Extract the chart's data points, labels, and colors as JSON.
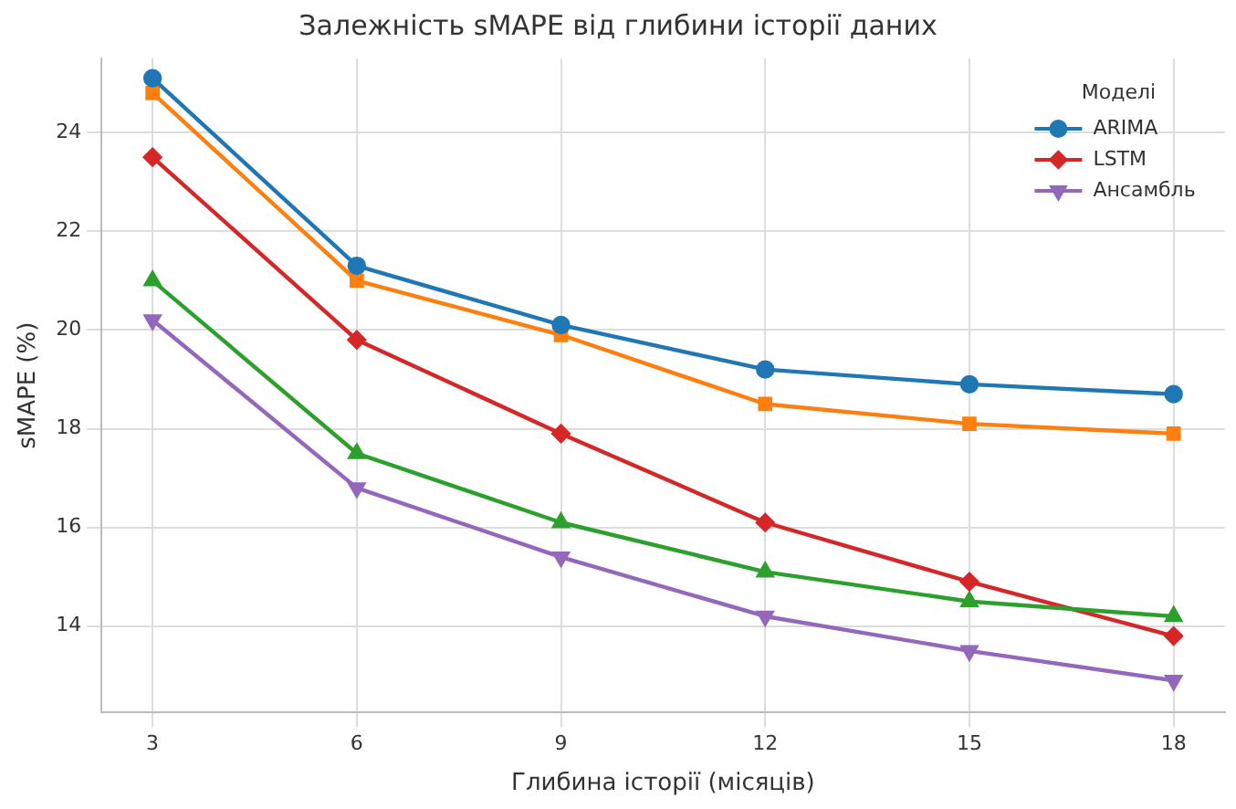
{
  "chart_data": {
    "type": "line",
    "title": "Залежність sMAPE від глибини історії даних",
    "xlabel": "Глибина історії (місяців)",
    "ylabel": "sMAPE (%)",
    "legend_title": "Моделі",
    "legend": "top right",
    "grid": true,
    "line_style": "solid",
    "x": [
      3,
      6,
      9,
      12,
      15,
      18
    ],
    "xlim": [
      2.25,
      18.75
    ],
    "xticks": [
      3,
      6,
      9,
      12,
      15,
      18
    ],
    "ylim": [
      12.25,
      25.5
    ],
    "yticks": [
      14,
      16,
      18,
      20,
      22,
      24
    ],
    "series": [
      {
        "name": "ARIMA",
        "color": "#1f77b4",
        "marker": "circle",
        "values": [
          25.1,
          21.3,
          20.1,
          19.2,
          18.9,
          18.7
        ]
      },
      {
        "color": "#ff7f0e",
        "marker": "square",
        "values": [
          24.8,
          21.0,
          19.9,
          18.5,
          18.1,
          17.9
        ]
      },
      {
        "color": "#2ca02c",
        "marker": "triangle",
        "values": [
          21.0,
          17.5,
          16.1,
          15.1,
          14.5,
          14.2
        ]
      },
      {
        "name": "LSTM",
        "color": "#d62728",
        "marker": "diamond",
        "values": [
          23.5,
          19.8,
          17.9,
          16.1,
          14.9,
          13.8
        ]
      },
      {
        "name": "Ансамбль",
        "color": "#9467bd",
        "marker": "triangle_down",
        "values": [
          20.2,
          16.8,
          15.4,
          14.2,
          13.5,
          12.9
        ]
      }
    ]
  }
}
